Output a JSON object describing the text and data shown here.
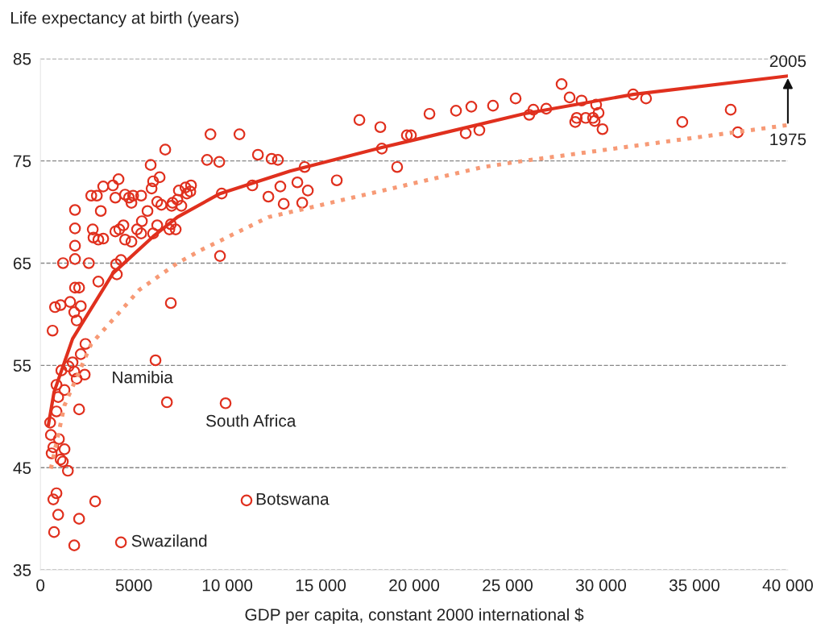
{
  "chart_data": {
    "type": "scatter",
    "ylabel": "Life expectancy at birth (years)",
    "xlabel": "GDP per capita, constant 2000 international $",
    "xlim": [
      0,
      40000
    ],
    "ylim": [
      35,
      85
    ],
    "xticks": [
      0,
      5000,
      {
        "value": 10000,
        "label": "10 000"
      },
      {
        "value": 15000,
        "label": "15 000"
      },
      {
        "value": 20000,
        "label": "20 000"
      },
      {
        "value": 25000,
        "label": "25 000"
      },
      {
        "value": 30000,
        "label": "30 000"
      },
      {
        "value": 35000,
        "label": "35 000"
      },
      {
        "value": 40000,
        "label": "40 000"
      }
    ],
    "yticks": [
      35,
      45,
      55,
      65,
      75,
      85
    ],
    "grid": "y",
    "marker": "circle",
    "series": [
      {
        "color": "#e0301e",
        "x": [
          520,
          560,
          690,
          600,
          990,
          1080,
          1200,
          1290,
          1470,
          690,
          860,
          950,
          730,
          1810,
          2070,
          2930,
          4310,
          11030,
          6770,
          6160,
          9910,
          2070,
          860,
          950,
          860,
          1290,
          1120,
          1510,
          1720,
          1810,
          1940,
          2370,
          2160,
          2410,
          650,
          780,
          1080,
          1590,
          1810,
          1940,
          2160,
          2070,
          1850,
          3100,
          1210,
          1850,
          2590,
          1850,
          1850,
          1850,
          4090,
          4310,
          4050,
          4530,
          2840,
          3100,
          3360,
          2800,
          4010,
          4220,
          4440,
          5170,
          5390,
          4870,
          5430,
          5730,
          6030,
          6250,
          6900,
          6980,
          7240,
          2720,
          3020,
          3230,
          3360,
          3880,
          4180,
          4010,
          4530,
          4740,
          4960,
          4870,
          5390,
          5900,
          6030,
          6380,
          6680,
          5950,
          6250,
          6470,
          7020,
          7330,
          7540,
          7840,
          7760,
          7410,
          7070,
          8060,
          8020,
          8920,
          9100,
          9570,
          9700,
          9610,
          6980,
          10650,
          11340,
          11640,
          12200,
          12370,
          12710,
          12840,
          13020,
          13750,
          14010,
          14140,
          14310,
          15860,
          17070,
          18190,
          18270,
          19090,
          19610,
          19830,
          20820,
          22240,
          22760,
          23060,
          23490,
          24220,
          25430,
          26160,
          26380,
          27070,
          27890,
          28320,
          28620,
          28700,
          28960,
          29180,
          29570,
          29740,
          29870,
          30080,
          29660,
          31720,
          32410,
          34350,
          36940,
          37320
        ],
        "values": [
          49.4,
          48.2,
          47.0,
          46.4,
          47.8,
          45.8,
          45.6,
          46.8,
          44.7,
          41.9,
          42.5,
          40.4,
          38.7,
          37.4,
          40.0,
          41.7,
          37.7,
          41.8,
          51.4,
          55.5,
          51.3,
          50.7,
          50.5,
          51.9,
          53.1,
          52.6,
          54.5,
          54.9,
          55.3,
          54.4,
          53.7,
          54.1,
          56.1,
          57.1,
          58.4,
          60.7,
          60.9,
          61.2,
          60.2,
          59.4,
          60.8,
          62.6,
          62.6,
          63.2,
          65.0,
          65.4,
          65.0,
          66.7,
          68.4,
          70.2,
          63.9,
          65.3,
          64.9,
          67.3,
          67.5,
          67.3,
          67.4,
          68.3,
          68.1,
          68.3,
          68.7,
          68.3,
          67.9,
          67.1,
          69.1,
          70.1,
          67.9,
          68.7,
          68.3,
          68.8,
          68.3,
          71.6,
          71.6,
          70.1,
          72.5,
          72.6,
          73.2,
          71.4,
          71.7,
          71.4,
          71.6,
          70.9,
          71.6,
          74.6,
          73.0,
          73.4,
          76.1,
          72.3,
          71.0,
          70.7,
          70.6,
          71.2,
          70.6,
          71.8,
          72.4,
          72.1,
          70.9,
          72.6,
          72.0,
          75.1,
          77.6,
          74.9,
          71.8,
          65.7,
          61.1,
          77.6,
          72.6,
          75.6,
          71.5,
          75.2,
          75.1,
          72.5,
          70.8,
          72.9,
          70.9,
          74.4,
          72.1,
          73.1,
          79.0,
          78.3,
          76.2,
          74.4,
          77.5,
          77.5,
          79.6,
          79.9,
          77.7,
          80.3,
          78.0,
          80.4,
          81.1,
          79.5,
          80.0,
          80.1,
          82.5,
          81.2,
          78.8,
          79.2,
          80.9,
          79.2,
          79.2,
          80.5,
          79.7,
          78.1,
          78.9,
          81.5,
          81.1,
          78.8,
          80.0,
          77.8
        ]
      },
      {
        "type": "line",
        "name": "2005",
        "color": "#e0301e",
        "line_style": "solid",
        "marker": "none",
        "x": [
          430,
          730,
          1720,
          3880,
          6030,
          7330,
          9610,
          13360,
          18270,
          25860,
          31720,
          40000
        ],
        "values": [
          49.2,
          52.4,
          57.6,
          64.0,
          67.6,
          69.5,
          71.8,
          74.0,
          76.3,
          79.6,
          81.5,
          83.3
        ]
      },
      {
        "type": "line",
        "name": "1975",
        "color": "#f79a76",
        "line_style": "dotted",
        "marker": "none",
        "x": [
          560,
          1290,
          2720,
          5300,
          7330,
          8620,
          12200,
          14350,
          23700,
          25860,
          40000
        ],
        "values": [
          44.9,
          51.1,
          57.1,
          62.4,
          65.0,
          66.3,
          69.5,
          70.4,
          74.4,
          75.0,
          78.5
        ]
      }
    ],
    "annotations": [
      {
        "text": "Namibia",
        "x": 6770,
        "y": 51.4
      },
      {
        "text": "South Africa",
        "x": 9910,
        "y": 51.3
      },
      {
        "text": "Botswana",
        "x": 11030,
        "y": 41.8
      },
      {
        "text": "Swaziland",
        "x": 4310,
        "y": 37.7
      }
    ]
  }
}
